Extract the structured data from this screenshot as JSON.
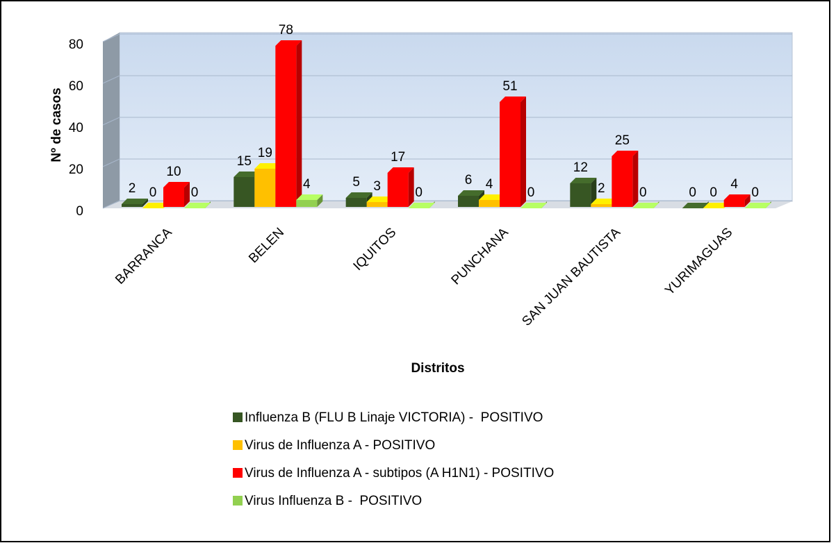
{
  "chart_data": {
    "type": "bar3d",
    "categories": [
      "BARRANCA",
      "BELEN",
      "IQUITOS",
      "PUNCHANA",
      "SAN JUAN BAUTISTA",
      "YURIMAGUAS"
    ],
    "series": [
      {
        "name": "Influenza B (FLU B Linaje VICTORIA) -  POSITIVO",
        "color": "#375623",
        "values": [
          2,
          15,
          5,
          6,
          12,
          0
        ]
      },
      {
        "name": "Virus de Influenza A - POSITIVO",
        "color": "#ffc000",
        "values": [
          0,
          19,
          3,
          4,
          2,
          0
        ]
      },
      {
        "name": "Virus de Influenza A - subtipos (A H1N1) - POSITIVO",
        "color": "#ff0000",
        "values": [
          10,
          78,
          17,
          51,
          25,
          4
        ]
      },
      {
        "name": "Virus Influenza B -  POSITIVO",
        "color": "#92d050",
        "values": [
          0,
          4,
          0,
          0,
          0,
          0
        ]
      }
    ],
    "ylabel": "Nº de casos",
    "xlabel": "Distritos",
    "ylim": [
      0,
      80
    ],
    "yticks": [
      0,
      20,
      40,
      60,
      80
    ],
    "grid": true,
    "legend": "bottom"
  }
}
